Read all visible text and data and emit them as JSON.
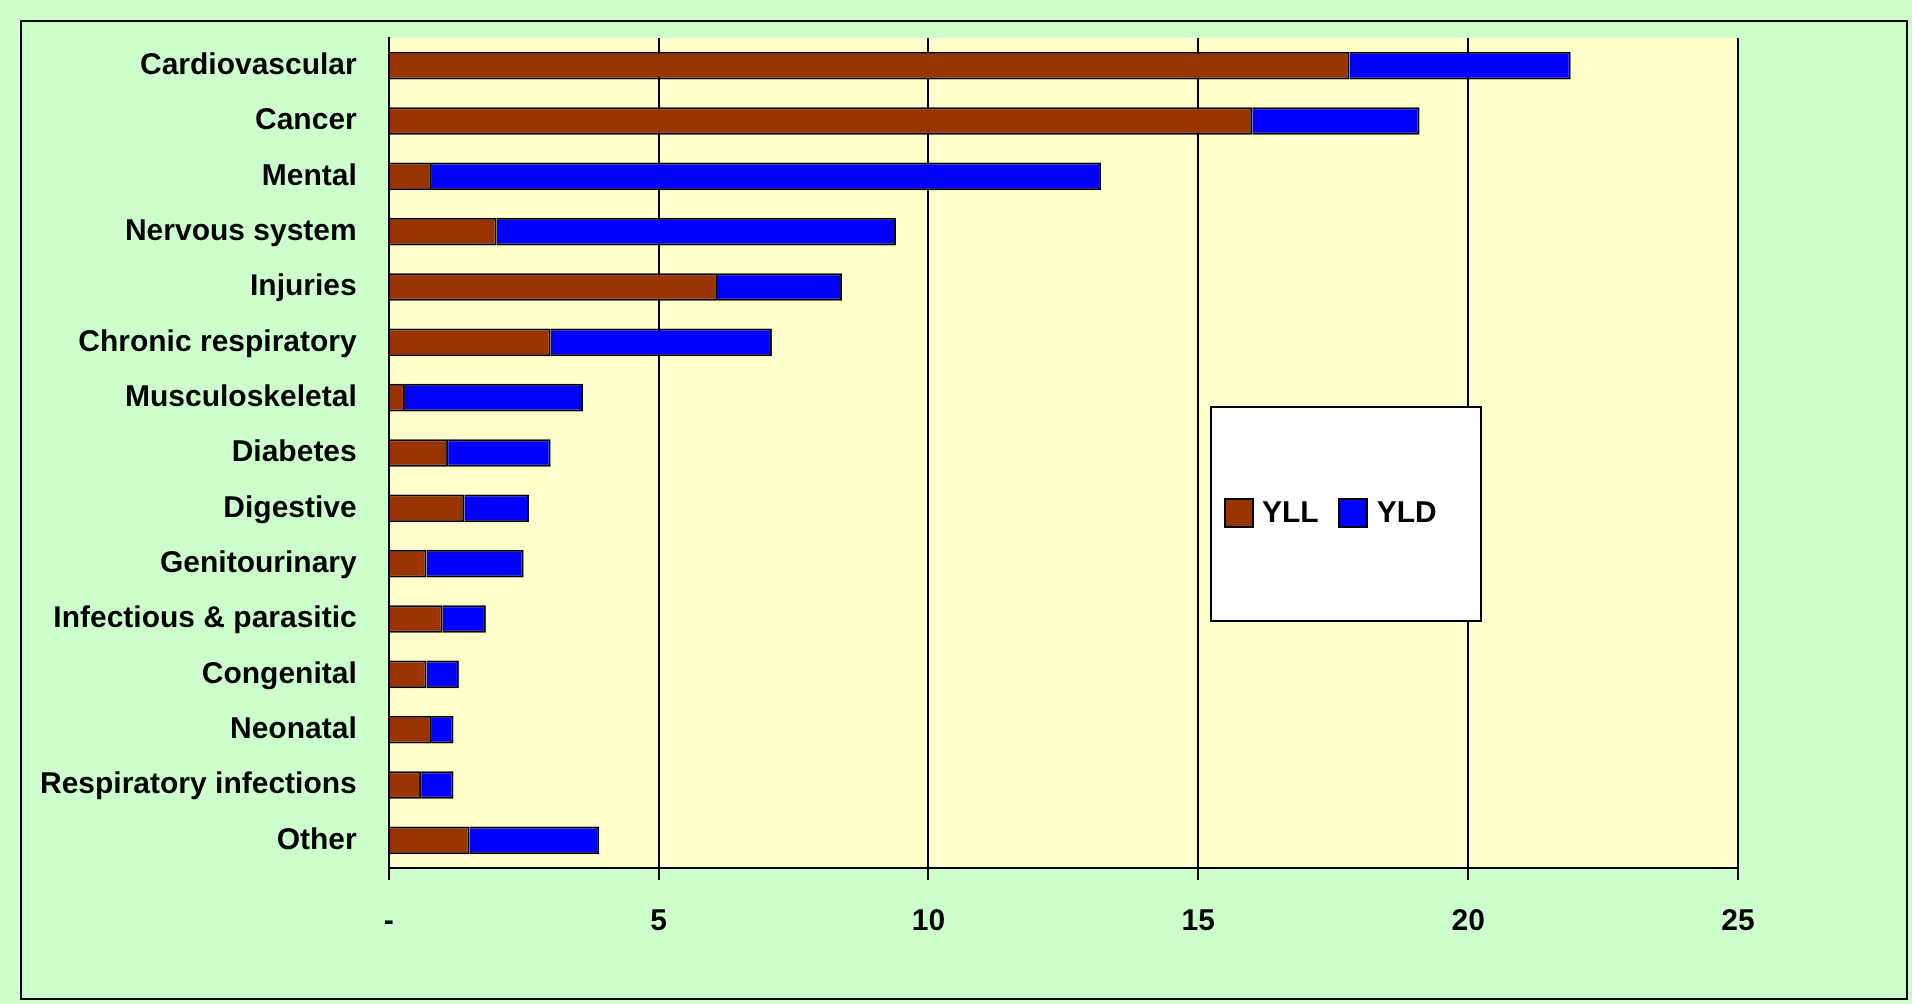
{
  "chart_data": {
    "type": "bar",
    "orientation": "horizontal",
    "stacked": true,
    "categories": [
      "Cardiovascular",
      "Cancer",
      "Mental",
      "Nervous system",
      "Injuries",
      "Chronic respiratory",
      "Musculoskeletal",
      "Diabetes",
      "Digestive",
      "Genitourinary",
      "Infectious & parasitic",
      "Congenital",
      "Neonatal",
      "Respiratory infections",
      "Other"
    ],
    "series": [
      {
        "name": "YLL",
        "color": "#993300",
        "values": [
          17.8,
          16.0,
          0.8,
          2.0,
          6.1,
          3.0,
          0.3,
          1.1,
          1.4,
          0.7,
          1.0,
          0.7,
          0.8,
          0.6,
          1.5
        ]
      },
      {
        "name": "YLD",
        "color": "#0000ff",
        "values": [
          4.1,
          3.1,
          12.4,
          7.4,
          2.3,
          4.1,
          3.3,
          1.9,
          1.2,
          1.8,
          0.8,
          0.6,
          0.4,
          0.6,
          2.4
        ]
      }
    ],
    "xlim": [
      0,
      25
    ],
    "xticks": [
      {
        "value": 0,
        "label": "-"
      },
      5,
      10,
      15,
      20,
      25
    ],
    "grid": "x",
    "legend": "right"
  }
}
